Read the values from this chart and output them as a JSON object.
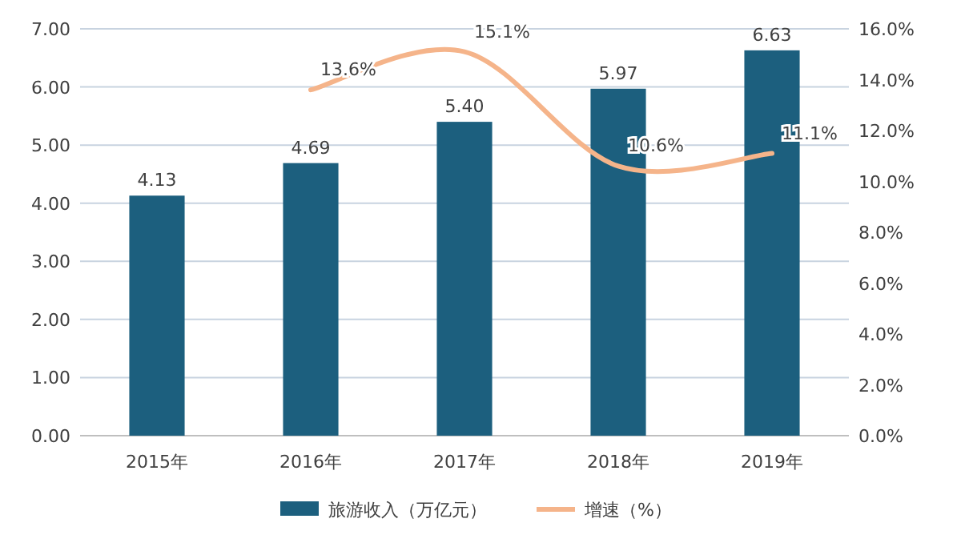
{
  "chart_data": {
    "type": "bar",
    "categories": [
      "2015年",
      "2016年",
      "2017年",
      "2018年",
      "2019年"
    ],
    "series": [
      {
        "name": "旅游收入（万亿元）",
        "color": "#1c5f7e",
        "values": [
          4.13,
          4.69,
          5.4,
          5.97,
          6.63
        ],
        "value_labels": [
          "4.13",
          "4.69",
          "5.40",
          "5.97",
          "6.63"
        ]
      },
      {
        "name": "增速（%）",
        "type": "line",
        "axis": "y2",
        "color": "#f5b48a",
        "values": [
          null,
          13.6,
          15.1,
          10.6,
          11.1
        ],
        "value_labels": [
          null,
          "13.6%",
          "15.1%",
          "10.6%",
          "11.1%"
        ]
      }
    ],
    "ylim": [
      0,
      7
    ],
    "yticks": [
      {
        "value": 0,
        "label": "0.00"
      },
      {
        "value": 1,
        "label": "1.00"
      },
      {
        "value": 2,
        "label": "2.00"
      },
      {
        "value": 3,
        "label": "3.00"
      },
      {
        "value": 4,
        "label": "4.00"
      },
      {
        "value": 5,
        "label": "5.00"
      },
      {
        "value": 6,
        "label": "6.00"
      },
      {
        "value": 7,
        "label": "7.00"
      }
    ],
    "y2lim": [
      0,
      16
    ],
    "y2ticks": [
      {
        "value": 0,
        "label": "0.0%"
      },
      {
        "value": 2,
        "label": "2.0%"
      },
      {
        "value": 4,
        "label": "4.0%"
      },
      {
        "value": 6,
        "label": "6.0%"
      },
      {
        "value": 8,
        "label": "8.0%"
      },
      {
        "value": 10,
        "label": "10.0%"
      },
      {
        "value": 12,
        "label": "12.0%"
      },
      {
        "value": 14,
        "label": "14.0%"
      },
      {
        "value": 16,
        "label": "16.0%"
      }
    ],
    "grid": "y",
    "legend": "bottom"
  }
}
